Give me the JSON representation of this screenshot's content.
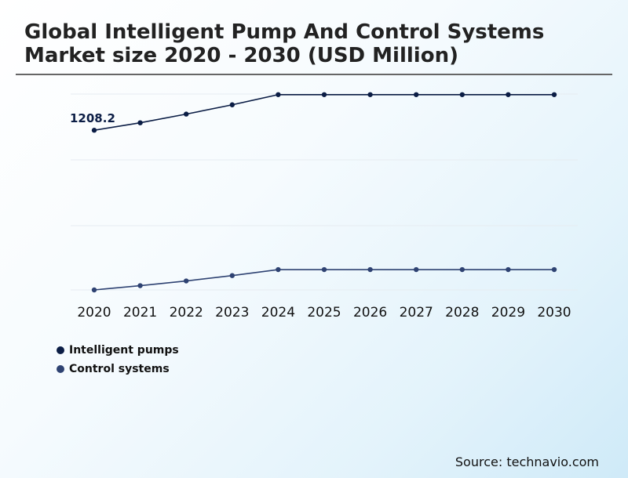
{
  "title": "Global Intelligent Pump And Control Systems Market size 2020 - 2030 (USD Million)",
  "source": "Source: technavio.com",
  "chart_data": [
    {
      "type": "line",
      "x": [
        "2020",
        "2021",
        "2022",
        "2023",
        "2024",
        "2025",
        "2026",
        "2027",
        "2028",
        "2029",
        "2030"
      ],
      "series": [
        {
          "name": "Intelligent pumps",
          "color": "#0b1d45",
          "values": [
            1208.2,
            1258,
            1316,
            1378,
            1446,
            1446,
            1446,
            1446,
            1446,
            1446,
            1446
          ]
        }
      ],
      "data_labels": [
        {
          "x": "2020",
          "text": "1208.2"
        }
      ],
      "ylim": [
        1000,
        1450
      ],
      "grid": true,
      "legend": "bottom-left",
      "xlabel": "",
      "ylabel": ""
    },
    {
      "type": "line",
      "x": [
        "2020",
        "2021",
        "2022",
        "2023",
        "2024",
        "2025",
        "2026",
        "2027",
        "2028",
        "2029",
        "2030"
      ],
      "series": [
        {
          "name": "Control systems",
          "color": "#2e4272",
          "values": [
            400,
            420,
            442,
            467,
            495,
            495,
            495,
            495,
            495,
            495,
            495
          ]
        }
      ],
      "ylim": [
        400,
        700
      ],
      "grid": true,
      "legend": "bottom-left",
      "xlabel": "",
      "ylabel": ""
    }
  ]
}
